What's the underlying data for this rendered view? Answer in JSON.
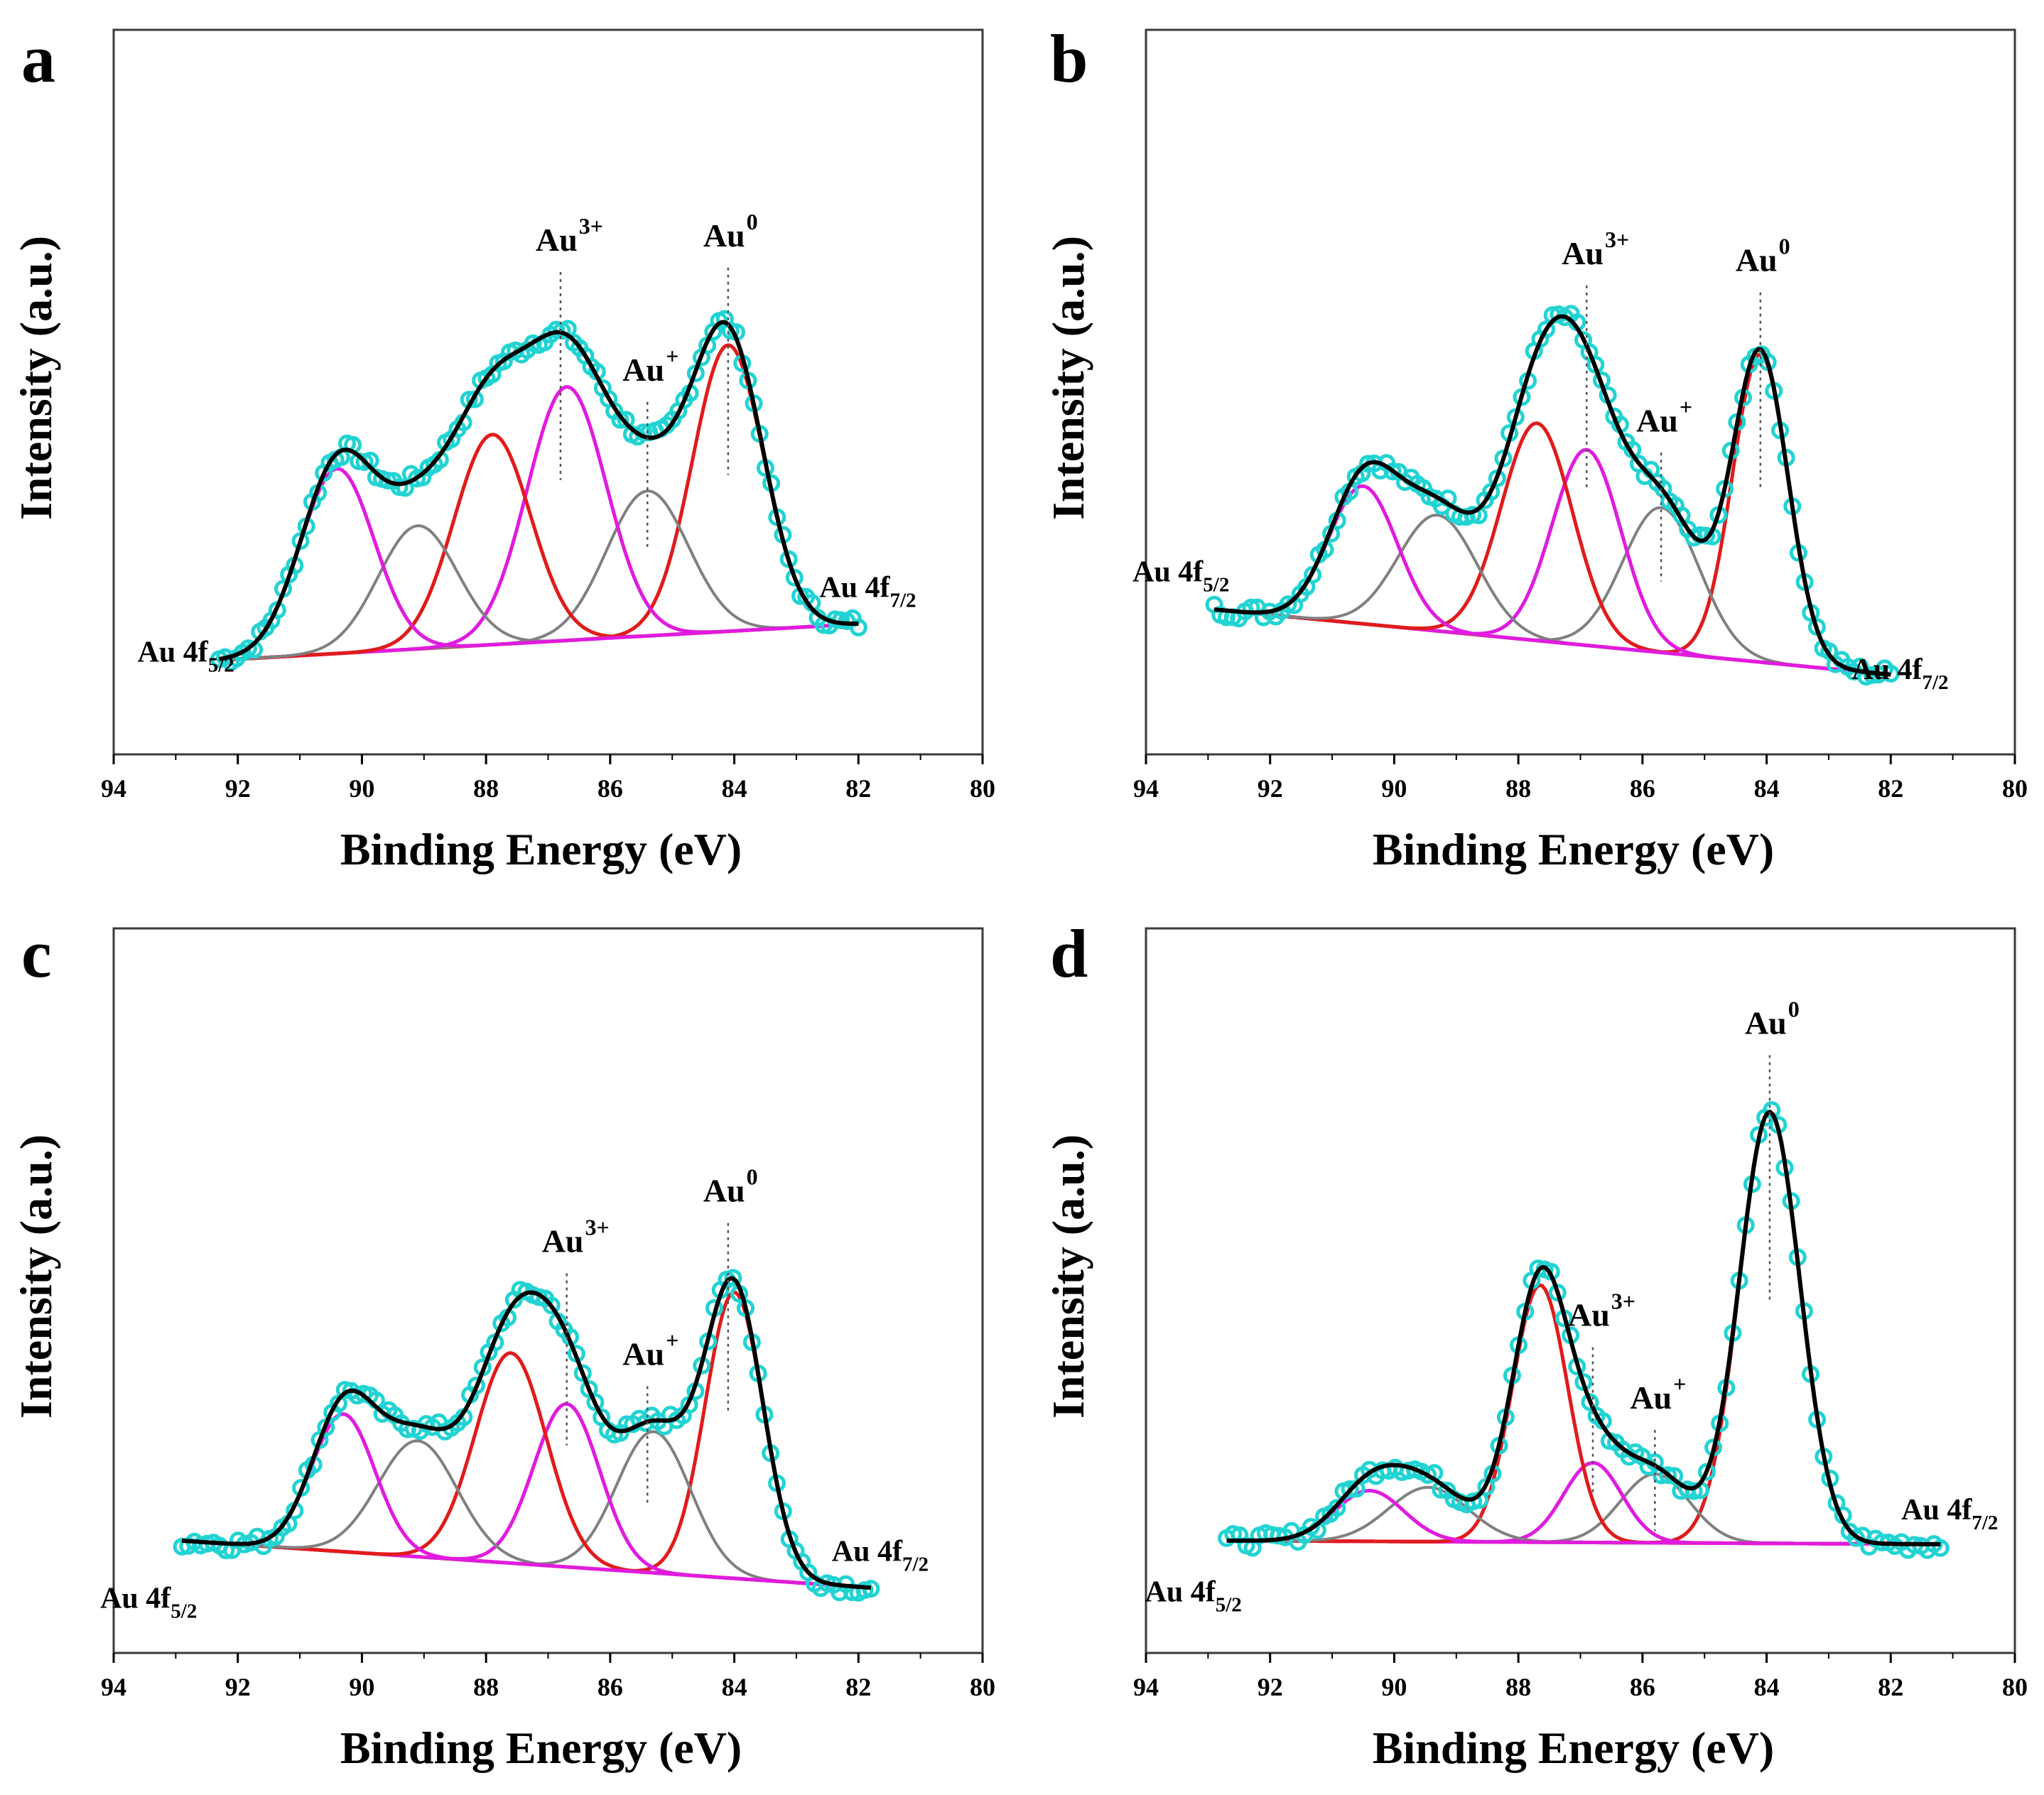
{
  "colors": {
    "data_points": "#22d3d3",
    "envelope": "#000000",
    "au0_component": "#e01b1b",
    "au3_component": "#e01bdf",
    "au1_component": "#808080",
    "baseline": "#7a5a6a",
    "annotation_line": "#555555"
  },
  "chart_data": [
    {
      "type": "line",
      "panel": "a",
      "xlabel": "Binding Energy (eV)",
      "ylabel": "Intensity (a.u.)",
      "xlim": [
        94,
        80
      ],
      "x_ticks": [
        "94",
        "92",
        "90",
        "88",
        "86",
        "84",
        "82",
        "80"
      ],
      "data_range": [
        92.3,
        82.0
      ],
      "baseline": [
        0.13,
        0.18
      ],
      "components": [
        {
          "name": "Au 4f7/2 Au0",
          "center": 84.1,
          "height": 0.395,
          "fwhm": 1.35,
          "series": "au0"
        },
        {
          "name": "Au 4f7/2 Au+",
          "center": 85.4,
          "height": 0.2,
          "fwhm": 1.55,
          "series": "au1"
        },
        {
          "name": "Au 4f7/2 Au3+",
          "center": 86.7,
          "height": 0.35,
          "fwhm": 1.5,
          "series": "au3"
        },
        {
          "name": "Au 4f5/2 Au0",
          "center": 87.9,
          "height": 0.29,
          "fwhm": 1.45,
          "series": "au0"
        },
        {
          "name": "Au 4f5/2 Au+",
          "center": 89.1,
          "height": 0.17,
          "fwhm": 1.5,
          "series": "au1"
        },
        {
          "name": "Au 4f5/2 Au3+",
          "center": 90.4,
          "height": 0.255,
          "fwhm": 1.4,
          "series": "au3"
        }
      ],
      "annotations": [
        {
          "text": "Au",
          "sup": "0",
          "x": 84.1
        },
        {
          "text": "Au",
          "sup": "+",
          "x": 85.4
        },
        {
          "text": "Au",
          "sup": "3+",
          "x": 86.8
        }
      ],
      "region_labels": [
        {
          "main": "Au 4f",
          "sub": "5/2",
          "side": "left"
        },
        {
          "main": "Au 4f",
          "sub": "7/2",
          "side": "right"
        }
      ]
    },
    {
      "type": "line",
      "panel": "b",
      "xlabel": "Binding Energy (eV)",
      "ylabel": "Intensity (a.u.)",
      "xlim": [
        94,
        80
      ],
      "x_ticks": [
        "94",
        "92",
        "90",
        "88",
        "86",
        "84",
        "82",
        "80"
      ],
      "data_range": [
        92.9,
        82.0
      ],
      "baseline": [
        0.2,
        0.11
      ],
      "components": [
        {
          "name": "Au 4f7/2 Au0",
          "center": 84.1,
          "height": 0.425,
          "fwhm": 1.05,
          "series": "au0"
        },
        {
          "name": "Au 4f7/2 Au+",
          "center": 85.7,
          "height": 0.2,
          "fwhm": 1.45,
          "series": "au1"
        },
        {
          "name": "Au 4f7/2 Au3+",
          "center": 86.9,
          "height": 0.27,
          "fwhm": 1.3,
          "series": "au3"
        },
        {
          "name": "Au 4f5/2 Au0",
          "center": 87.7,
          "height": 0.3,
          "fwhm": 1.35,
          "series": "au0"
        },
        {
          "name": "Au 4f5/2 Au+",
          "center": 89.3,
          "height": 0.16,
          "fwhm": 1.5,
          "series": "au1"
        },
        {
          "name": "Au 4f5/2 Au3+",
          "center": 90.5,
          "height": 0.19,
          "fwhm": 1.3,
          "series": "au3"
        }
      ],
      "annotations": [
        {
          "text": "Au",
          "sup": "0",
          "x": 84.1
        },
        {
          "text": "Au",
          "sup": "+",
          "x": 85.7
        },
        {
          "text": "Au",
          "sup": "3+",
          "x": 86.9
        }
      ],
      "region_labels": [
        {
          "main": "Au 4f",
          "sub": "5/2",
          "side": "left"
        },
        {
          "main": "Au 4f",
          "sub": "7/2",
          "side": "right"
        }
      ]
    },
    {
      "type": "line",
      "panel": "c",
      "xlabel": "Binding Energy (eV)",
      "ylabel": "Intensity (a.u.)",
      "xlim": [
        94,
        80
      ],
      "x_ticks": [
        "94",
        "92",
        "90",
        "88",
        "86",
        "84",
        "82",
        "80"
      ],
      "data_range": [
        92.9,
        81.8
      ],
      "baseline": [
        0.155,
        0.09
      ],
      "components": [
        {
          "name": "Au 4f7/2 Au0",
          "center": 84.0,
          "height": 0.395,
          "fwhm": 1.1,
          "series": "au0"
        },
        {
          "name": "Au 4f7/2 Au+",
          "center": 85.3,
          "height": 0.195,
          "fwhm": 1.4,
          "series": "au1"
        },
        {
          "name": "Au 4f7/2 Au3+",
          "center": 86.7,
          "height": 0.225,
          "fwhm": 1.25,
          "series": "au3"
        },
        {
          "name": "Au 4f5/2 Au0",
          "center": 87.6,
          "height": 0.29,
          "fwhm": 1.35,
          "series": "au0"
        },
        {
          "name": "Au 4f5/2 Au+",
          "center": 89.1,
          "height": 0.16,
          "fwhm": 1.5,
          "series": "au1"
        },
        {
          "name": "Au 4f5/2 Au3+",
          "center": 90.3,
          "height": 0.19,
          "fwhm": 1.2,
          "series": "au3"
        }
      ],
      "annotations": [
        {
          "text": "Au",
          "sup": "0",
          "x": 84.1
        },
        {
          "text": "Au",
          "sup": "+",
          "x": 85.4
        },
        {
          "text": "Au",
          "sup": "3+",
          "x": 86.7
        }
      ],
      "region_labels": [
        {
          "main": "Au 4f",
          "sub": "5/2",
          "side": "left"
        },
        {
          "main": "Au 4f",
          "sub": "7/2",
          "side": "right"
        }
      ]
    },
    {
      "type": "line",
      "panel": "d",
      "xlabel": "Binding Energy (eV)",
      "ylabel": "Intensity (a.u.)",
      "xlim": [
        94,
        80
      ],
      "x_ticks": [
        "94",
        "92",
        "90",
        "88",
        "86",
        "84",
        "82",
        "80"
      ],
      "data_range": [
        92.7,
        81.2
      ],
      "baseline": [
        0.155,
        0.15
      ],
      "components": [
        {
          "name": "Au 4f7/2 Au0",
          "center": 83.95,
          "height": 0.595,
          "fwhm": 1.15,
          "series": "au0"
        },
        {
          "name": "Au 4f7/2 Au+",
          "center": 85.8,
          "height": 0.095,
          "fwhm": 1.3,
          "series": "au1"
        },
        {
          "name": "Au 4f7/2 Au3+",
          "center": 86.8,
          "height": 0.11,
          "fwhm": 1.1,
          "series": "au3"
        },
        {
          "name": "Au 4f5/2 Au0",
          "center": 87.65,
          "height": 0.355,
          "fwhm": 1.05,
          "series": "au0"
        },
        {
          "name": "Au 4f5/2 Au+",
          "center": 89.45,
          "height": 0.075,
          "fwhm": 1.5,
          "series": "au1"
        },
        {
          "name": "Au 4f5/2 Au3+",
          "center": 90.4,
          "height": 0.07,
          "fwhm": 1.3,
          "series": "au3"
        }
      ],
      "annotations": [
        {
          "text": "Au",
          "sup": "0",
          "x": 83.95
        },
        {
          "text": "Au",
          "sup": "+",
          "x": 85.8
        },
        {
          "text": "Au",
          "sup": "3+",
          "x": 86.8
        }
      ],
      "region_labels": [
        {
          "main": "Au 4f",
          "sub": "5/2",
          "side": "left"
        },
        {
          "main": "Au 4f",
          "sub": "7/2",
          "side": "right"
        }
      ]
    }
  ]
}
